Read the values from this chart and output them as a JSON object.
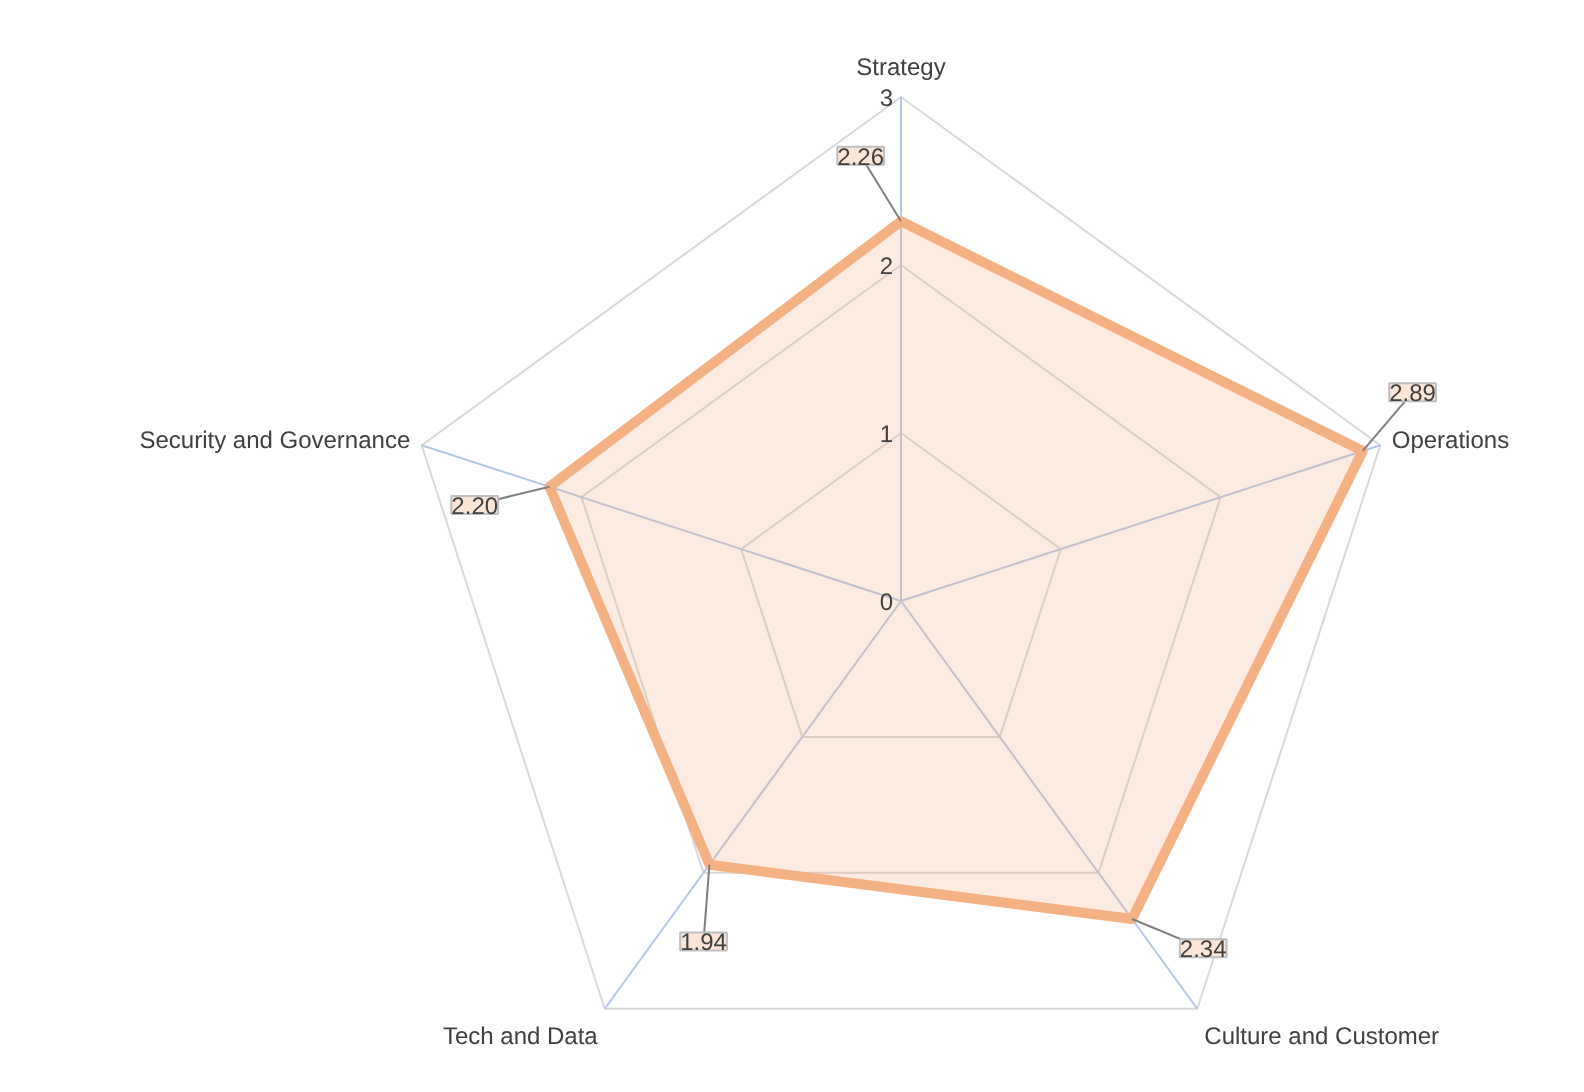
{
  "chart_data": {
    "type": "radar",
    "categories": [
      "Strategy",
      "Operations",
      "Culture and Customer",
      "Tech and Data",
      "Security and Governance"
    ],
    "series": [
      {
        "color": "#f4b183",
        "values": [
          2.26,
          2.89,
          2.34,
          1.94,
          2.2
        ]
      }
    ],
    "ylim": [
      0,
      3
    ],
    "yticks": [
      0,
      1,
      2,
      3
    ],
    "grid": true,
    "value_labels": [
      "2.26",
      "2.89",
      "2.34",
      "1.94",
      "2.20"
    ]
  }
}
